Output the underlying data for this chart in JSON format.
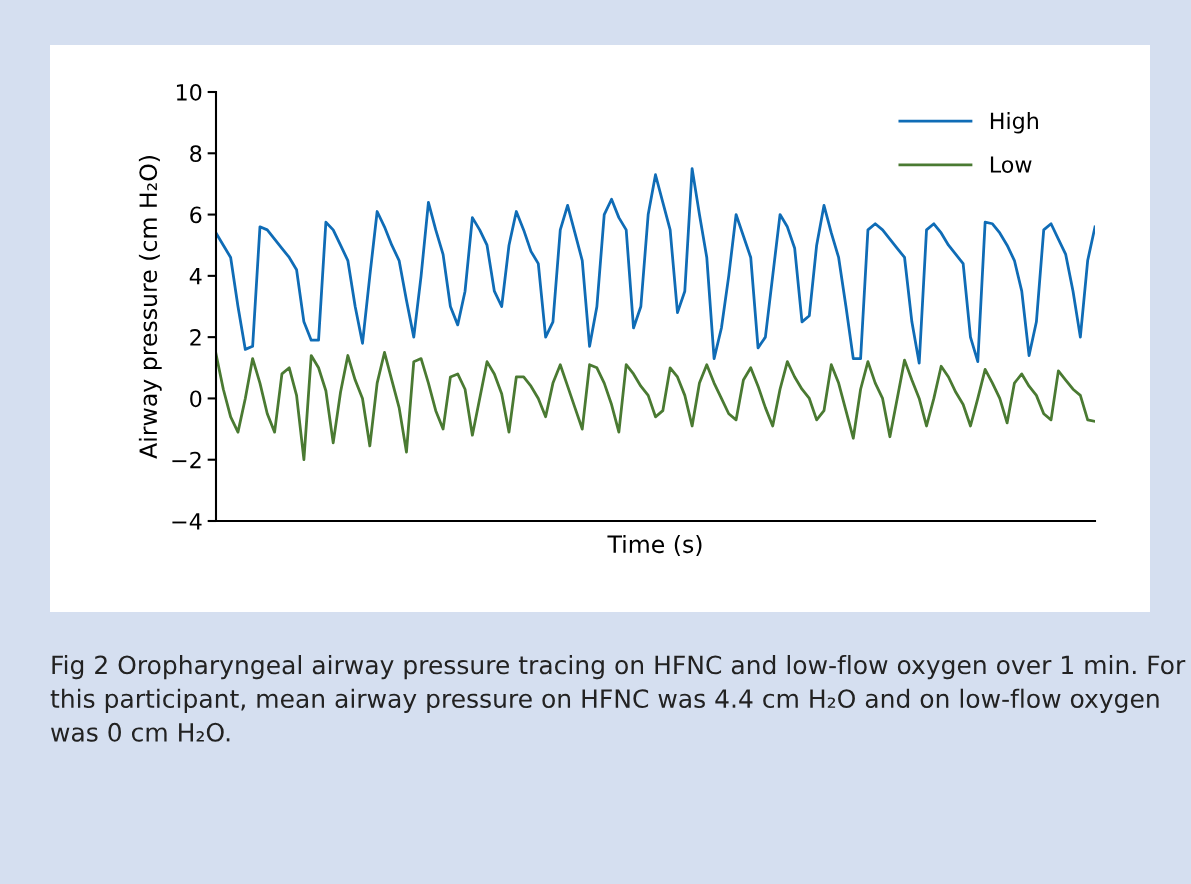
{
  "chart_data": {
    "type": "line",
    "xlabel": "Time (s)",
    "ylabel": "Airway pressure (cm H₂O)",
    "ylim": [
      -4,
      10
    ],
    "yticks": [
      {
        "value": -4,
        "label": "−4"
      },
      {
        "value": -2,
        "label": "−2"
      },
      0,
      2,
      4,
      6,
      8,
      10
    ],
    "tick_labels": "y",
    "grid": false,
    "legend": "top right",
    "marker": "none",
    "line_style": "solid",
    "categories": [
      null,
      null,
      null,
      null,
      null,
      null,
      null,
      null,
      null,
      null,
      null,
      null,
      null,
      null,
      null,
      null,
      null,
      null,
      null,
      null,
      null,
      null,
      null,
      null,
      null,
      null,
      null,
      null,
      null,
      null,
      null,
      null,
      null,
      null,
      null,
      null,
      null,
      null,
      null,
      null,
      null,
      null,
      null,
      null,
      null,
      null,
      null,
      null,
      null,
      null,
      null,
      null,
      null,
      null,
      null,
      null,
      null,
      null,
      null,
      null,
      null,
      null,
      null,
      null,
      null,
      null,
      null,
      null,
      null,
      null,
      null,
      null,
      null,
      null,
      null,
      null,
      null,
      null,
      null,
      null,
      null,
      null,
      null,
      null,
      null,
      null,
      null,
      null,
      null,
      null,
      null,
      null,
      null,
      null,
      null,
      null,
      null,
      null,
      null,
      null,
      null,
      null,
      null,
      null,
      null,
      null,
      null,
      null,
      null,
      null,
      null,
      null,
      null,
      null,
      null,
      null,
      null,
      null,
      null,
      null,
      null
    ],
    "series": [
      {
        "name": "High",
        "color": "#0f6cb6",
        "values": [
          5.4,
          5.0,
          4.6,
          3.0,
          1.6,
          1.7,
          5.6,
          5.5,
          5.2,
          4.9,
          4.6,
          4.2,
          2.5,
          1.9,
          1.9,
          5.75,
          5.5,
          5.0,
          4.5,
          3.0,
          1.8,
          4.0,
          6.1,
          5.6,
          5.0,
          4.5,
          3.2,
          2.0,
          4.0,
          6.4,
          5.5,
          4.7,
          3.0,
          2.4,
          3.5,
          5.9,
          5.5,
          5.0,
          3.5,
          3.0,
          5.0,
          6.1,
          5.5,
          4.8,
          4.4,
          2.0,
          2.5,
          5.5,
          6.3,
          5.4,
          4.5,
          1.7,
          3.0,
          6.0,
          6.5,
          5.9,
          5.5,
          2.3,
          3.0,
          6.0,
          7.3,
          6.4,
          5.5,
          2.8,
          3.5,
          7.5,
          6.0,
          4.6,
          1.3,
          2.3,
          4.0,
          6.0,
          5.3,
          4.6,
          1.65,
          2.0,
          4.0,
          6.0,
          5.6,
          4.9,
          2.5,
          2.7,
          5.0,
          6.3,
          5.4,
          4.6,
          3.0,
          1.3,
          1.3,
          5.5,
          5.7,
          5.5,
          5.2,
          4.9,
          4.6,
          2.5,
          1.15,
          5.5,
          5.7,
          5.4,
          5.0,
          4.7,
          4.4,
          2.0,
          1.2,
          5.75,
          5.7,
          5.4,
          5.0,
          4.5,
          3.5,
          1.4,
          2.5,
          5.5,
          5.7,
          5.2,
          4.7,
          3.5,
          2.0,
          4.5,
          5.6
        ]
      },
      {
        "name": "Low",
        "color": "#4a7a32",
        "values": [
          1.45,
          0.3,
          -0.6,
          -1.1,
          0.0,
          1.3,
          0.5,
          -0.5,
          -1.1,
          0.8,
          1.0,
          0.1,
          -2.0,
          1.4,
          1.0,
          0.25,
          -1.45,
          0.2,
          1.4,
          0.6,
          0.0,
          -1.55,
          0.5,
          1.5,
          0.6,
          -0.3,
          -1.75,
          1.2,
          1.3,
          0.5,
          -0.4,
          -1.0,
          0.7,
          0.8,
          0.3,
          -1.2,
          0.0,
          1.2,
          0.8,
          0.15,
          -1.1,
          0.7,
          0.7,
          0.4,
          0.0,
          -0.6,
          0.5,
          1.1,
          0.4,
          -0.3,
          -1.0,
          1.1,
          1.0,
          0.5,
          -0.2,
          -1.1,
          1.1,
          0.8,
          0.4,
          0.1,
          -0.6,
          -0.4,
          1.0,
          0.7,
          0.1,
          -0.9,
          0.5,
          1.1,
          0.5,
          0.0,
          -0.5,
          -0.7,
          0.6,
          1.0,
          0.4,
          -0.3,
          -0.9,
          0.3,
          1.2,
          0.7,
          0.3,
          0.0,
          -0.7,
          -0.4,
          1.1,
          0.5,
          -0.4,
          -1.3,
          0.3,
          1.2,
          0.5,
          0.0,
          -1.25,
          0.0,
          1.25,
          0.6,
          0.0,
          -0.9,
          0.0,
          1.05,
          0.7,
          0.2,
          -0.2,
          -0.9,
          0.0,
          0.95,
          0.5,
          0.0,
          -0.8,
          0.5,
          0.8,
          0.4,
          0.1,
          -0.5,
          -0.7,
          0.9,
          0.6,
          0.3,
          0.1,
          -0.7,
          -0.75
        ]
      }
    ],
    "annotations": [
      "Fig 2 Oropharyngeal airway pressure tracing on HFNC and low-flow oxygen over 1 min. For this participant, mean airway pressure on HFNC was 4.4 cm H₂O and on low-flow oxygen was 0 cm H₂O."
    ]
  }
}
